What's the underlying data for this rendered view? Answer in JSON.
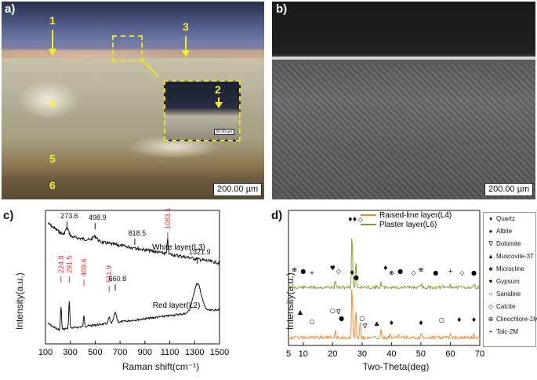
{
  "panels": {
    "a": {
      "label": "a)",
      "scale": "200.00 µm",
      "inset_scale": "50.00 µm",
      "markers": [
        "1",
        "2",
        "3",
        "4",
        "5",
        "6"
      ]
    },
    "b": {
      "label": "b)",
      "scale": "200.00 µm"
    },
    "c": {
      "label": "c)"
    },
    "d": {
      "label": "d)"
    }
  },
  "chart_data": [
    {
      "type": "line",
      "xlabel": "Raman shift(cm⁻¹)",
      "ylabel": "Intensity(a.u.)",
      "xlim": [
        100,
        1500
      ],
      "x_ticks": [
        "100",
        "300",
        "500",
        "700",
        "900",
        "1100",
        "1300",
        "1500"
      ],
      "series": [
        {
          "name": "White layer(L3)",
          "peaks": [
            {
              "x": 273.6,
              "label": "273.6",
              "color": "#111111"
            },
            {
              "x": 498.9,
              "label": "498.9",
              "color": "#111111"
            },
            {
              "x": 818.5,
              "label": "818.5",
              "color": "#111111"
            },
            {
              "x": 1083.1,
              "label": "1083.1",
              "color": "#e03030"
            }
          ]
        },
        {
          "name": "Red layer(L2)",
          "peaks": [
            {
              "x": 224.8,
              "label": "224.8",
              "color": "#e03030"
            },
            {
              "x": 291.5,
              "label": "291.5",
              "color": "#e03030"
            },
            {
              "x": 409.6,
              "label": "409.6",
              "color": "#e03030"
            },
            {
              "x": 611.9,
              "label": "611.9",
              "color": "#e03030"
            },
            {
              "x": 660.8,
              "label": "660.8",
              "color": "#111111"
            },
            {
              "x": 1321.9,
              "label": "1321.9",
              "color": "#111111"
            }
          ]
        }
      ],
      "grid": false
    },
    {
      "type": "line",
      "xlabel": "Two-Theta(deg)",
      "ylabel": "Intensity(a.u.)",
      "xlim": [
        5,
        70
      ],
      "x_ticks": [
        "5",
        "10",
        "20",
        "30",
        "40",
        "50",
        "60",
        "70"
      ],
      "series": [
        {
          "name": "Raised-line layer(L4)",
          "color": "#f08a2e"
        },
        {
          "name": "Plaster layer(L6)",
          "color": "#8a9a2a"
        }
      ],
      "legend_placement": "top",
      "phases": [
        {
          "symbol": "♦",
          "name": "Quartz"
        },
        {
          "symbol": "●",
          "name": "Albite"
        },
        {
          "symbol": "∇",
          "name": "Dolomite"
        },
        {
          "symbol": "▲",
          "name": "Muscovite-3T"
        },
        {
          "symbol": "♣",
          "name": "Microcline"
        },
        {
          "symbol": "♥",
          "name": "Gypsum"
        },
        {
          "symbol": "○",
          "name": "Sanidine"
        },
        {
          "symbol": "◇",
          "name": "Calcite"
        },
        {
          "symbol": "⊕",
          "name": "Clinochlore-1Mllb"
        },
        {
          "symbol": "+",
          "name": "Talc-2M"
        }
      ],
      "grid": false
    }
  ]
}
